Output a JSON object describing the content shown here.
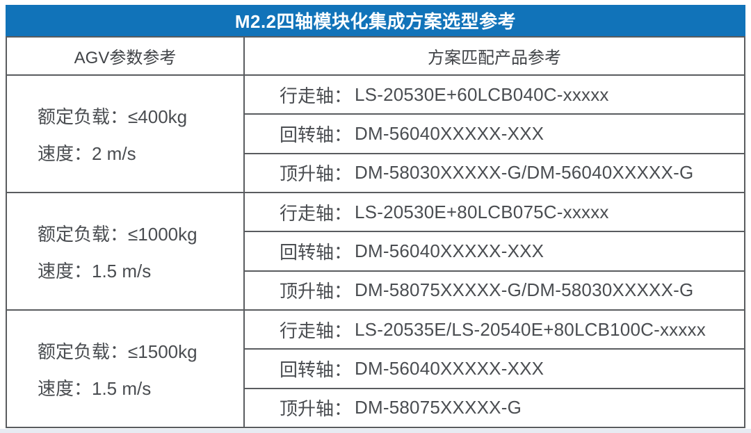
{
  "title": "M2.2四轴模块化集成方案选型参考",
  "columns": {
    "left": "AGV参数参考",
    "right": "方案匹配产品参考"
  },
  "groups": [
    {
      "load": "额定负载：≤400kg",
      "speed": "速度：2 m/s",
      "axes": [
        {
          "label": "行走轴：",
          "value": "LS-20530E+60LCB040C-xxxxx"
        },
        {
          "label": "回转轴：",
          "value": "DM-56040XXXXX-XXX"
        },
        {
          "label": "顶升轴：",
          "value": "DM-58030XXXXX-G/DM-56040XXXXX-G"
        }
      ]
    },
    {
      "load": "额定负载：≤1000kg",
      "speed": "速度：1.5 m/s",
      "axes": [
        {
          "label": "行走轴：",
          "value": "LS-20530E+80LCB075C-xxxxx"
        },
        {
          "label": "回转轴：",
          "value": "DM-56040XXXXX-XXX"
        },
        {
          "label": "顶升轴：",
          "value": "DM-58075XXXXX-G/DM-58030XXXXX-G"
        }
      ]
    },
    {
      "load": "额定负载：≤1500kg",
      "speed": "速度：1.5 m/s",
      "axes": [
        {
          "label": "行走轴：",
          "value": "LS-20535E/LS-20540E+80LCB100C-xxxxx"
        },
        {
          "label": "回转轴：",
          "value": "DM-56040XXXXX-XXX"
        },
        {
          "label": "顶升轴：",
          "value": "DM-58075XXXXX-G"
        }
      ]
    }
  ],
  "colors": {
    "accent_blue": "#1173b9",
    "border_gray": "#595c5f",
    "text_gray": "#4a4d51",
    "bottom_strip": "#e7ebf2"
  }
}
